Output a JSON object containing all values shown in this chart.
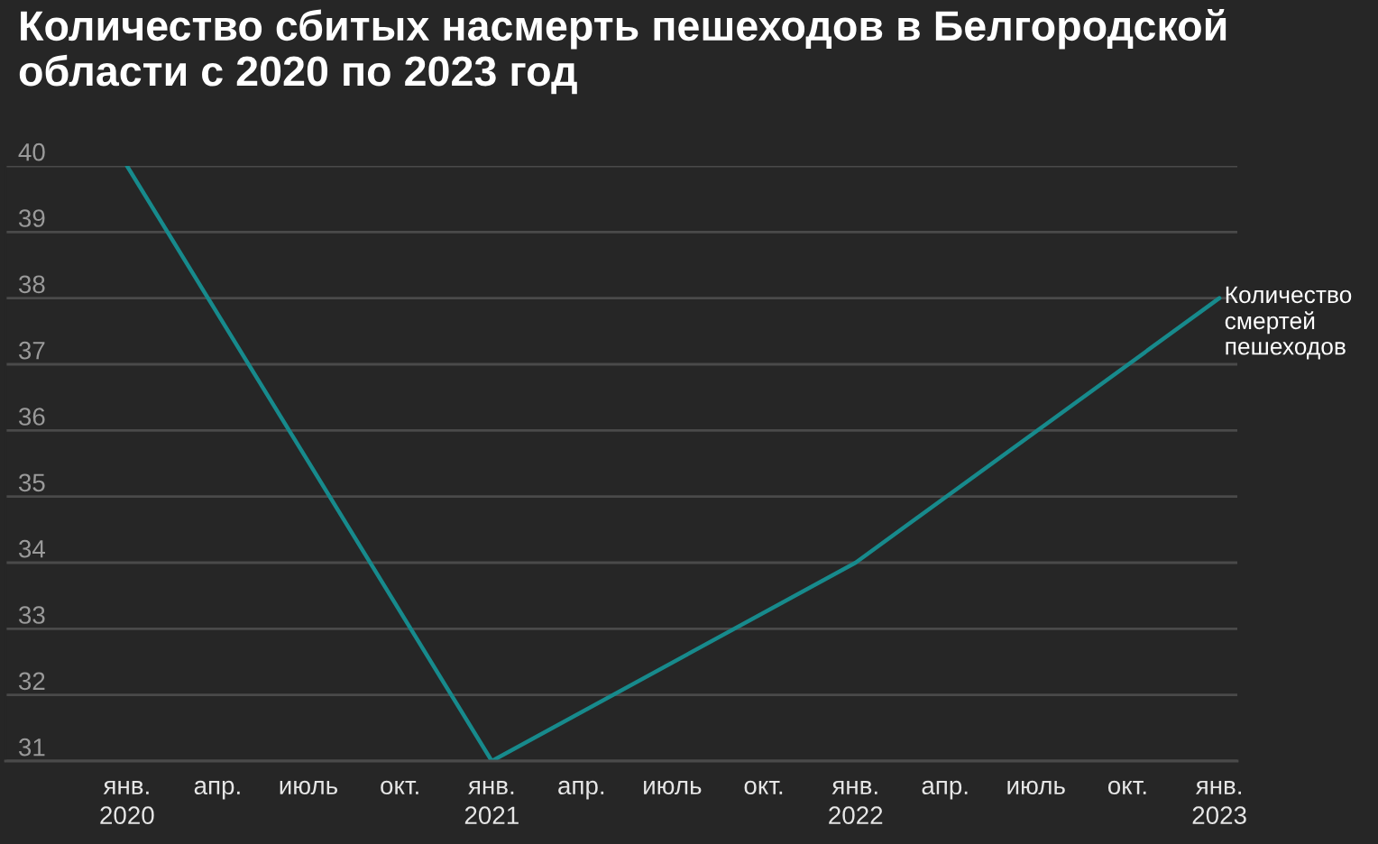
{
  "chart_data": {
    "type": "line",
    "title": "Количество сбитых насмерть пешеходов в Белгородской области с 2020 по 2023 год",
    "x": [
      "2020-01",
      "2021-01",
      "2022-01",
      "2023-01"
    ],
    "series": [
      {
        "name": "Количество смертей пешеходов",
        "color": "#178a8c",
        "values": [
          40,
          31,
          34,
          38
        ]
      }
    ],
    "xlim": [
      "2019-09-01",
      "2023-01-19"
    ],
    "xticks": [
      {
        "value": "2020-01",
        "label": "янв.\n2020"
      },
      {
        "value": "2020-04",
        "label": "апр."
      },
      {
        "value": "2020-07",
        "label": "июль"
      },
      {
        "value": "2020-10",
        "label": "окт."
      },
      {
        "value": "2021-01",
        "label": "янв.\n2021"
      },
      {
        "value": "2021-04",
        "label": "апр."
      },
      {
        "value": "2021-07",
        "label": "июль"
      },
      {
        "value": "2021-10",
        "label": "окт."
      },
      {
        "value": "2022-01",
        "label": "янв.\n2022"
      },
      {
        "value": "2022-04",
        "label": "апр."
      },
      {
        "value": "2022-07",
        "label": "июль"
      },
      {
        "value": "2022-10",
        "label": "окт."
      },
      {
        "value": "2023-01",
        "label": "янв.\n2023"
      }
    ],
    "ylim": [
      31,
      40
    ],
    "yticks": [
      31,
      32,
      33,
      34,
      35,
      36,
      37,
      38,
      39,
      40
    ],
    "grid": "y",
    "marker": "none",
    "line_style": "solid"
  }
}
